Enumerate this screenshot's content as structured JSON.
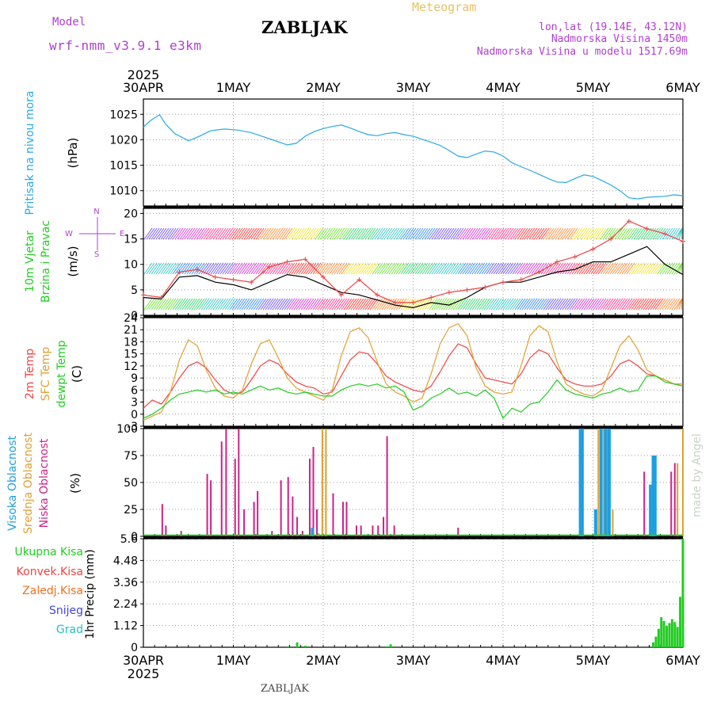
{
  "header": {
    "model_label": "Model",
    "model_name": "wrf-nmm_v3.9.1 e3km",
    "station_title": "ZABLJAK",
    "meteogram_label": "Meteogram",
    "lonlat": "lon,lat (19.14E, 43.12N)",
    "altitude": "Nadmorska Visina 1450m",
    "model_altitude": "Nadmorska Visina u modelu 1517.69m",
    "footer_station": "ZABLJAK",
    "made_by": "made by Angel"
  },
  "colors": {
    "pressure": "#29a9e6",
    "temp2m": "#ee4444",
    "sfc_temp": "#e0a030",
    "dewpt": "#22cc22",
    "high_cloud": "#1e9fe0",
    "mid_cloud": "#e0a030",
    "low_cloud": "#cc2288",
    "purple": "#b040d0"
  },
  "chart_data": [
    {
      "type": "line",
      "name": "pressure",
      "title": "Pritisak na nivou mora",
      "ylabel": "(hPa)",
      "ylim": [
        1007,
        1028
      ],
      "yticks": [
        1010,
        1015,
        1020,
        1025
      ],
      "x_range_days": [
        0,
        6
      ],
      "x_ticks": [
        "30APR",
        "1MAY",
        "2MAY",
        "3MAY",
        "4MAY",
        "5MAY",
        "6MAY"
      ],
      "year": "2025",
      "series": [
        {
          "name": "MSLP",
          "x": [
            0,
            0.08,
            0.18,
            0.25,
            0.35,
            0.45,
            0.5,
            0.6,
            0.75,
            0.9,
            1.05,
            1.2,
            1.35,
            1.5,
            1.6,
            1.7,
            1.8,
            1.9,
            2.0,
            2.1,
            2.2,
            2.3,
            2.4,
            2.5,
            2.6,
            2.7,
            2.8,
            2.9,
            3.0,
            3.1,
            3.2,
            3.3,
            3.4,
            3.5,
            3.6,
            3.7,
            3.8,
            3.9,
            4.0,
            4.1,
            4.2,
            4.3,
            4.4,
            4.5,
            4.6,
            4.7,
            4.8,
            4.9,
            5.0,
            5.1,
            5.2,
            5.3,
            5.4,
            5.5,
            5.6,
            5.7,
            5.8,
            5.9,
            6.0
          ],
          "values": [
            1022.5,
            1023.8,
            1024.9,
            1023.0,
            1021.2,
            1020.3,
            1019.8,
            1020.5,
            1021.8,
            1022.1,
            1021.9,
            1021.4,
            1020.5,
            1019.6,
            1019.0,
            1019.3,
            1020.7,
            1021.6,
            1022.2,
            1022.6,
            1022.9,
            1022.3,
            1021.6,
            1021.0,
            1020.8,
            1021.2,
            1021.4,
            1021.0,
            1020.7,
            1020.1,
            1019.5,
            1018.9,
            1017.9,
            1016.8,
            1016.5,
            1017.2,
            1017.8,
            1017.6,
            1016.8,
            1015.5,
            1014.7,
            1014.0,
            1013.2,
            1012.4,
            1011.7,
            1011.6,
            1012.4,
            1013.1,
            1012.8,
            1012.0,
            1011.1,
            1010.0,
            1008.6,
            1008.4,
            1008.7,
            1008.8,
            1008.9,
            1009.2,
            1009.0
          ]
        }
      ]
    },
    {
      "type": "line",
      "name": "wind",
      "title": "10m Vjetar Brzina i Pravac",
      "ylabel": "(m/s)",
      "ylim": [
        0,
        21
      ],
      "yticks": [
        0,
        5,
        10,
        15,
        20
      ],
      "compass": "N",
      "compass_w": "W",
      "compass_e": "E",
      "compass_s": "S",
      "series": [
        {
          "name": "wind speed",
          "color": "#000000",
          "x": [
            0,
            0.2,
            0.4,
            0.6,
            0.8,
            1.0,
            1.2,
            1.4,
            1.6,
            1.8,
            2.0,
            2.2,
            2.4,
            2.6,
            2.8,
            3.0,
            3.2,
            3.4,
            3.6,
            3.8,
            4.0,
            4.2,
            4.4,
            4.6,
            4.8,
            5.0,
            5.2,
            5.4,
            5.6,
            5.8,
            6.0
          ],
          "values": [
            3.5,
            3.2,
            7.5,
            7.8,
            6.5,
            6.0,
            5.0,
            6.5,
            8.0,
            7.5,
            6.0,
            4.5,
            4.0,
            3.0,
            2.0,
            1.5,
            2.5,
            2.0,
            3.5,
            5.5,
            6.5,
            6.5,
            7.5,
            8.5,
            9.0,
            10.5,
            10.5,
            12.0,
            13.5,
            10.0,
            8.0
          ]
        },
        {
          "name": "wind gust",
          "color": "#ee4444",
          "marker": "+",
          "x": [
            0,
            0.2,
            0.4,
            0.6,
            0.8,
            1.0,
            1.2,
            1.4,
            1.6,
            1.8,
            2.0,
            2.2,
            2.4,
            2.6,
            2.8,
            3.0,
            3.2,
            3.4,
            3.6,
            3.8,
            4.0,
            4.2,
            4.4,
            4.6,
            4.8,
            5.0,
            5.2,
            5.4,
            5.6,
            5.8,
            6.0
          ],
          "values": [
            4.0,
            3.5,
            8.5,
            9.0,
            7.5,
            7.0,
            6.5,
            9.5,
            10.5,
            11.0,
            7.5,
            4.0,
            7.0,
            4.0,
            2.5,
            2.5,
            3.5,
            4.5,
            5.0,
            5.5,
            6.5,
            7.0,
            8.5,
            10.5,
            11.5,
            13.0,
            15.0,
            18.5,
            17.0,
            16.0,
            14.5
          ]
        }
      ]
    },
    {
      "type": "line",
      "name": "temperature",
      "title": "2m Temp",
      "title2": "SFC Temp",
      "title3": "dewpt Temp",
      "ylabel": "(C)",
      "ylim": [
        -3,
        24
      ],
      "yticks": [
        -3,
        0,
        3,
        6,
        9,
        12,
        15,
        18,
        21,
        24
      ],
      "series": [
        {
          "name": "2m Temp",
          "color": "#ee4444",
          "x": [
            0,
            0.1,
            0.2,
            0.3,
            0.4,
            0.5,
            0.6,
            0.7,
            0.8,
            0.9,
            1.0,
            1.1,
            1.2,
            1.3,
            1.4,
            1.5,
            1.6,
            1.7,
            1.8,
            1.9,
            2.0,
            2.1,
            2.2,
            2.3,
            2.4,
            2.5,
            2.6,
            2.7,
            2.8,
            2.9,
            3.0,
            3.1,
            3.2,
            3.3,
            3.4,
            3.5,
            3.6,
            3.7,
            3.8,
            3.9,
            4.0,
            4.1,
            4.2,
            4.3,
            4.4,
            4.5,
            4.6,
            4.7,
            4.8,
            4.9,
            5.0,
            5.1,
            5.2,
            5.3,
            5.4,
            5.5,
            5.6,
            5.7,
            5.8,
            5.9,
            6.0
          ],
          "values": [
            1.5,
            3.5,
            2.5,
            5.5,
            9.0,
            12.0,
            13.0,
            11.5,
            8.5,
            6.0,
            5.0,
            5.5,
            8.5,
            12.0,
            13.5,
            12.5,
            10.0,
            8.0,
            7.0,
            6.5,
            5.0,
            5.5,
            9.5,
            13.5,
            15.5,
            15.0,
            12.5,
            9.5,
            8.0,
            7.0,
            6.0,
            5.5,
            7.0,
            10.5,
            14.5,
            17.5,
            16.5,
            12.5,
            9.0,
            8.5,
            8.0,
            7.5,
            10.0,
            14.0,
            16.0,
            15.0,
            11.5,
            8.5,
            7.5,
            7.0,
            7.0,
            7.5,
            9.5,
            12.5,
            13.5,
            12.0,
            10.0,
            9.5,
            8.5,
            7.5,
            7.5
          ]
        },
        {
          "name": "SFC Temp",
          "color": "#e0a030",
          "x": [
            0,
            0.1,
            0.2,
            0.3,
            0.4,
            0.5,
            0.6,
            0.7,
            0.8,
            0.9,
            1.0,
            1.1,
            1.2,
            1.3,
            1.4,
            1.5,
            1.6,
            1.7,
            1.8,
            1.9,
            2.0,
            2.1,
            2.2,
            2.3,
            2.4,
            2.5,
            2.6,
            2.7,
            2.8,
            2.9,
            3.0,
            3.1,
            3.2,
            3.3,
            3.4,
            3.5,
            3.6,
            3.7,
            3.8,
            3.9,
            4.0,
            4.1,
            4.2,
            4.3,
            4.4,
            4.5,
            4.6,
            4.7,
            4.8,
            4.9,
            5.0,
            5.1,
            5.2,
            5.3,
            5.4,
            5.5,
            5.6,
            5.7,
            5.8,
            5.9,
            6.0
          ],
          "values": [
            -1.5,
            -0.5,
            0.5,
            5.5,
            13.5,
            18.5,
            17.0,
            11.0,
            6.5,
            4.5,
            4.0,
            6.0,
            12.5,
            17.5,
            18.5,
            14.0,
            9.0,
            6.5,
            5.5,
            4.5,
            3.5,
            6.0,
            14.5,
            20.5,
            21.5,
            19.0,
            13.0,
            7.5,
            5.5,
            4.5,
            3.0,
            4.0,
            10.0,
            17.5,
            21.5,
            22.5,
            19.5,
            11.5,
            7.0,
            5.5,
            5.0,
            5.5,
            12.0,
            19.5,
            22.0,
            20.5,
            13.0,
            7.5,
            6.0,
            5.0,
            4.5,
            6.0,
            11.5,
            17.0,
            19.5,
            16.0,
            11.0,
            9.5,
            8.5,
            7.5,
            7.5
          ]
        },
        {
          "name": "dewpt Temp",
          "color": "#22cc22",
          "x": [
            0,
            0.1,
            0.2,
            0.3,
            0.4,
            0.5,
            0.6,
            0.7,
            0.8,
            0.9,
            1.0,
            1.1,
            1.2,
            1.3,
            1.4,
            1.5,
            1.6,
            1.7,
            1.8,
            1.9,
            2.0,
            2.1,
            2.2,
            2.3,
            2.4,
            2.5,
            2.6,
            2.7,
            2.8,
            2.9,
            3.0,
            3.1,
            3.2,
            3.3,
            3.4,
            3.5,
            3.6,
            3.7,
            3.8,
            3.9,
            4.0,
            4.1,
            4.2,
            4.3,
            4.4,
            4.5,
            4.6,
            4.7,
            4.8,
            4.9,
            5.0,
            5.1,
            5.2,
            5.3,
            5.4,
            5.5,
            5.6,
            5.7,
            5.8,
            5.9,
            6.0
          ],
          "values": [
            -1.0,
            0.0,
            1.5,
            3.5,
            5.0,
            5.5,
            6.0,
            5.5,
            6.0,
            5.0,
            5.5,
            5.0,
            6.0,
            7.0,
            6.0,
            6.5,
            5.5,
            5.0,
            5.5,
            5.0,
            4.5,
            4.5,
            6.0,
            7.0,
            7.5,
            7.0,
            7.5,
            6.5,
            7.0,
            5.5,
            1.0,
            2.0,
            4.0,
            5.0,
            6.5,
            5.0,
            5.5,
            4.5,
            6.0,
            4.0,
            -1.0,
            1.5,
            0.5,
            2.5,
            3.0,
            5.5,
            8.5,
            6.0,
            5.0,
            4.5,
            4.0,
            5.0,
            5.5,
            6.5,
            5.5,
            6.0,
            9.5,
            9.5,
            8.0,
            7.5,
            7.0
          ]
        }
      ]
    },
    {
      "type": "bar",
      "name": "clouds",
      "title": "Visoka Oblacnost",
      "title2": "Srednja Oblacnost",
      "title3": "Niska Oblacnost",
      "ylabel": "(%)",
      "ylim": [
        0,
        100
      ],
      "yticks": [
        0,
        25,
        50,
        75,
        100
      ],
      "series": [
        {
          "name": "Niska",
          "color": "#cc2288",
          "x": [
            0.21,
            0.25,
            0.42,
            0.71,
            0.75,
            0.87,
            0.92,
            1.02,
            1.06,
            1.12,
            1.23,
            1.27,
            1.43,
            1.53,
            1.61,
            1.66,
            1.71,
            1.77,
            1.85,
            1.89,
            1.93,
            2.11,
            2.22,
            2.26,
            2.37,
            2.42,
            2.55,
            2.61,
            2.67,
            2.71,
            2.79,
            3.5,
            5.57,
            5.87,
            5.91
          ],
          "values": [
            30,
            10,
            5,
            58,
            52,
            88,
            100,
            72,
            100,
            25,
            32,
            42,
            5,
            52,
            55,
            37,
            18,
            5,
            72,
            83,
            25,
            40,
            32,
            32,
            10,
            10,
            10,
            10,
            18,
            93,
            10,
            8,
            60,
            60,
            68
          ]
        },
        {
          "name": "Srednja",
          "color": "#e0a030",
          "x": [
            1.95,
            1.99,
            2.03,
            5.06,
            5.12,
            5.16,
            5.22,
            5.94,
            6.0
          ],
          "values": [
            3,
            100,
            100,
            100,
            100,
            100,
            25,
            68,
            100
          ]
        },
        {
          "name": "Visoka",
          "color": "#1e9fe0",
          "x": [
            1.88,
            4.86,
            4.88,
            5.03,
            5.09,
            5.14,
            5.18,
            5.64,
            5.67,
            5.69
          ],
          "values": [
            8,
            100,
            100,
            25,
            100,
            100,
            100,
            48,
            75,
            75
          ]
        }
      ]
    },
    {
      "type": "bar",
      "name": "precipitation",
      "ylabel": "1hr Precip (mm)",
      "ylim": [
        0,
        5.6
      ],
      "yticks": [
        0,
        1.12,
        2.24,
        3.36,
        4.48,
        5.6
      ],
      "ytick_labels": [
        "0",
        "1.12",
        "2.24",
        "3.36",
        "4.48",
        "5.6"
      ],
      "legend": [
        "Ukupna Kisa",
        "Konvek.Kisa",
        "Zaledj.Kisa",
        "Snijeg",
        "Grad"
      ],
      "legend_colors": [
        "#22cc22",
        "#ee4444",
        "#f07020",
        "#4444dd",
        "#22c0c0"
      ],
      "series": [
        {
          "name": "Ukupna Kisa",
          "color": "#22cc22",
          "x": [
            1.61,
            1.71,
            1.8,
            2.71,
            2.75,
            5.67,
            5.7,
            5.73,
            5.76,
            5.79,
            5.82,
            5.85,
            5.88,
            5.91,
            5.94,
            5.97,
            6.0
          ],
          "values": [
            0.05,
            0.25,
            0.08,
            0.05,
            0.15,
            0.25,
            0.55,
            0.95,
            1.55,
            1.35,
            1.1,
            1.25,
            1.45,
            1.3,
            1.05,
            2.6,
            5.6
          ]
        }
      ]
    }
  ]
}
